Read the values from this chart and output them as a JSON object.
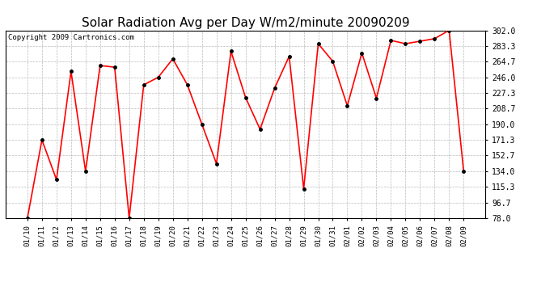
{
  "title": "Solar Radiation Avg per Day W/m2/minute 20090209",
  "copyright": "Copyright 2009 Cartronics.com",
  "dates": [
    "01/10",
    "01/11",
    "01/12",
    "01/13",
    "01/14",
    "01/15",
    "01/16",
    "01/17",
    "01/18",
    "01/19",
    "01/20",
    "01/21",
    "01/22",
    "01/23",
    "01/24",
    "01/25",
    "01/26",
    "01/27",
    "01/28",
    "01/29",
    "01/30",
    "01/31",
    "02/01",
    "02/02",
    "02/03",
    "02/04",
    "02/05",
    "02/06",
    "02/07",
    "02/08",
    "02/09"
  ],
  "values": [
    78.0,
    171.3,
    124.0,
    253.0,
    134.0,
    260.0,
    258.0,
    78.0,
    237.0,
    246.0,
    268.0,
    237.0,
    190.0,
    143.0,
    277.0,
    222.0,
    184.0,
    233.0,
    271.0,
    113.0,
    286.0,
    265.0,
    212.0,
    275.0,
    221.0,
    290.0,
    286.0,
    289.0,
    292.0,
    302.0,
    134.0
  ],
  "ylim": [
    78.0,
    302.0
  ],
  "yticks": [
    78.0,
    96.7,
    115.3,
    134.0,
    152.7,
    171.3,
    190.0,
    208.7,
    227.3,
    246.0,
    264.7,
    283.3,
    302.0
  ],
  "line_color": "red",
  "marker": "o",
  "marker_color": "black",
  "marker_size": 2.5,
  "grid_color": "#aaaaaa",
  "background_color": "#ffffff",
  "title_fontsize": 11,
  "copyright_fontsize": 6.5,
  "tick_fontsize": 6.5,
  "ytick_fontsize": 7
}
